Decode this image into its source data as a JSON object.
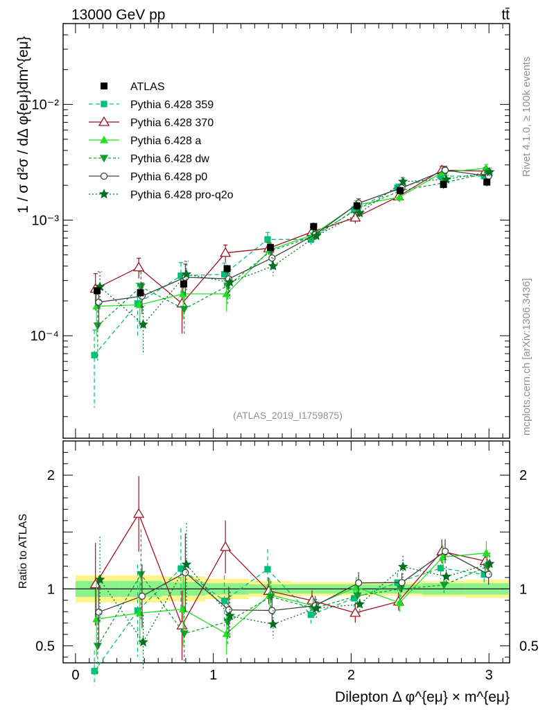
{
  "header": {
    "left": "13000 GeV pp",
    "right": "tt̄"
  },
  "watermark": {
    "rivet": "Rivet 4.1.0, ≥ 100k events",
    "site": "mcplots.cern.ch [arXiv:1306.3436]"
  },
  "analysis_label": "(ATLAS_2019_I1759875)",
  "chart_data": {
    "type": "line",
    "title": "",
    "xlabel": "Dilepton Δ φ^{eμ} × m^{eμ}",
    "ylabel": "1 / σ  d²σ / dΔ φ{eμ}dm^{eμ}",
    "ratio_ylabel": "Ratio to ATLAS",
    "xlim": [
      -0.09,
      3.15
    ],
    "ylim": [
      1.3e-05,
      0.05
    ],
    "yscale": "log",
    "ratio_ylim": [
      0.35,
      2.3
    ],
    "x_ticks": [
      0,
      1,
      2,
      3
    ],
    "y_ticks": [
      {
        "value": 0.0001,
        "label": "10⁻⁴"
      },
      {
        "value": 0.001,
        "label": "10⁻³"
      },
      {
        "value": 0.01,
        "label": "10⁻²"
      }
    ],
    "ratio_ticks": [
      {
        "value": 0.5,
        "label": "0.5"
      },
      {
        "value": 1,
        "label": "1"
      },
      {
        "value": 2,
        "label": "2"
      }
    ],
    "x": [
      0.157,
      0.471,
      0.785,
      1.1,
      1.414,
      1.728,
      2.042,
      2.356,
      2.67,
      2.985
    ],
    "data": {
      "name": "ATLAS",
      "values": [
        0.000245,
        0.000235,
        0.00028,
        0.00038,
        0.00058,
        0.00088,
        0.00133,
        0.0018,
        0.00203,
        0.00213
      ],
      "band_inner": [
        0.07,
        0.07,
        0.06,
        0.05,
        0.04,
        0.04,
        0.04,
        0.04,
        0.05,
        0.05
      ],
      "band_outer": [
        0.12,
        0.12,
        0.11,
        0.09,
        0.07,
        0.06,
        0.06,
        0.06,
        0.07,
        0.08
      ]
    },
    "series": [
      {
        "name": "Pythia 6.428 359",
        "color": "#00c078",
        "dash": "6,4",
        "marker": "square-filled",
        "values": [
          6.8e-05,
          0.00019,
          0.00033,
          0.00034,
          0.00068,
          0.00068,
          0.00122,
          0.0019,
          0.0024,
          0.0024
        ],
        "errors": [
          0.65,
          0.5,
          0.3,
          0.25,
          0.15,
          0.1,
          0.08,
          0.08,
          0.08,
          0.08
        ]
      },
      {
        "name": "Pythia 6.428 370",
        "color": "#a01020",
        "dash": "",
        "marker": "triangle-open",
        "values": [
          0.000255,
          0.00039,
          0.00019,
          0.00052,
          0.00057,
          0.00079,
          0.00105,
          0.0016,
          0.0027,
          0.00265
        ],
        "errors": [
          0.35,
          0.2,
          0.45,
          0.17,
          0.12,
          0.1,
          0.11,
          0.09,
          0.08,
          0.07
        ]
      },
      {
        "name": "Pythia 6.428 a",
        "color": "#20e020",
        "dash": "",
        "marker": "triangle-filled",
        "values": [
          0.00018,
          0.000185,
          0.00023,
          0.00023,
          0.00055,
          0.00075,
          0.00135,
          0.00158,
          0.0026,
          0.0028
        ],
        "errors": [
          0.45,
          0.35,
          0.4,
          0.3,
          0.15,
          0.1,
          0.09,
          0.09,
          0.08,
          0.08
        ]
      },
      {
        "name": "Pythia 6.428 dw",
        "color": "#10a030",
        "dash": "4,3",
        "marker": "triangle-down-filled",
        "values": [
          0.000122,
          0.000265,
          0.00017,
          0.00027,
          0.00054,
          0.00073,
          0.00125,
          0.0018,
          0.0021,
          0.00255
        ],
        "errors": [
          0.5,
          0.35,
          0.4,
          0.3,
          0.15,
          0.1,
          0.09,
          0.08,
          0.08,
          0.08
        ]
      },
      {
        "name": "Pythia 6.428 p0",
        "color": "#404040",
        "dash": "",
        "marker": "circle-open",
        "values": [
          0.000195,
          0.00022,
          0.00032,
          0.00031,
          0.00047,
          0.00075,
          0.0014,
          0.0019,
          0.0027,
          0.0024
        ],
        "errors": [
          0.4,
          0.3,
          0.3,
          0.25,
          0.15,
          0.1,
          0.09,
          0.08,
          0.08,
          0.08
        ]
      },
      {
        "name": "Pythia 6.428 pro-q2o",
        "color": "#007020",
        "dash": "2,3",
        "marker": "star",
        "values": [
          0.000265,
          0.000125,
          0.00034,
          0.00029,
          0.0004,
          0.00073,
          0.00115,
          0.00215,
          0.00225,
          0.0026
        ],
        "errors": [
          0.35,
          0.45,
          0.3,
          0.28,
          0.18,
          0.1,
          0.09,
          0.08,
          0.08,
          0.08
        ]
      }
    ]
  }
}
